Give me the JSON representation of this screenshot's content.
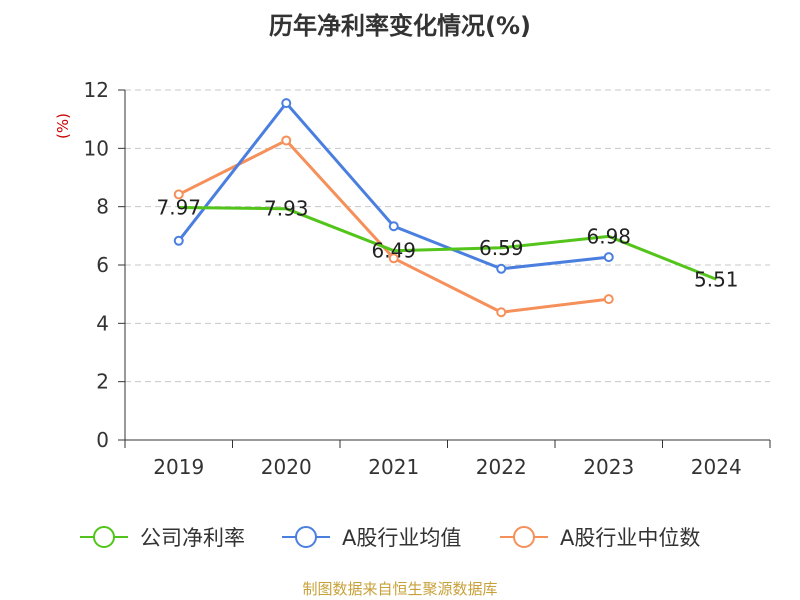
{
  "chart_data": {
    "type": "line",
    "title": "历年净利率变化情况(%)",
    "ylabel": "(%)",
    "xlabel": "",
    "categories": [
      "2019",
      "2020",
      "2021",
      "2022",
      "2023",
      "2024"
    ],
    "ylim": [
      0,
      12
    ],
    "yticks": [
      "0",
      "2",
      "4",
      "6",
      "8",
      "10",
      "12"
    ],
    "grid": true,
    "legend_position": "bottom",
    "series": [
      {
        "name": "公司净利率",
        "color": "#52c41a",
        "values": [
          7.97,
          7.93,
          6.49,
          6.59,
          6.98,
          5.51
        ],
        "labels": [
          "7.97",
          "7.93",
          "6.49",
          "6.59",
          "6.98",
          "5.51"
        ],
        "show_labels": true,
        "show_markers": false
      },
      {
        "name": "A股行业均值",
        "color": "#4a7fe0",
        "values": [
          6.83,
          11.55,
          7.33,
          5.87,
          6.27,
          null
        ],
        "show_labels": false,
        "show_markers": true
      },
      {
        "name": "A股行业中位数",
        "color": "#f5905a",
        "values": [
          8.42,
          10.27,
          6.23,
          4.38,
          4.83,
          null
        ],
        "show_labels": false,
        "show_markers": true
      }
    ],
    "source": "制图数据来自恒生聚源数据库"
  }
}
